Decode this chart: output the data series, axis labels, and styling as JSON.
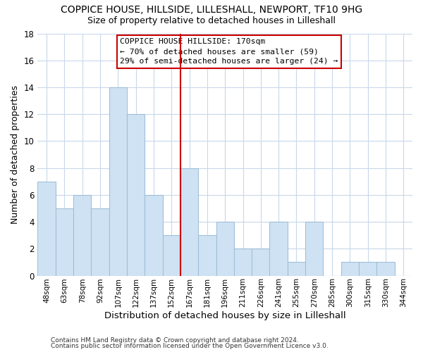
{
  "title": "COPPICE HOUSE, HILLSIDE, LILLESHALL, NEWPORT, TF10 9HG",
  "subtitle": "Size of property relative to detached houses in Lilleshall",
  "xlabel": "Distribution of detached houses by size in Lilleshall",
  "ylabel": "Number of detached properties",
  "bar_labels": [
    "48sqm",
    "63sqm",
    "78sqm",
    "92sqm",
    "107sqm",
    "122sqm",
    "137sqm",
    "152sqm",
    "167sqm",
    "181sqm",
    "196sqm",
    "211sqm",
    "226sqm",
    "241sqm",
    "255sqm",
    "270sqm",
    "285sqm",
    "300sqm",
    "315sqm",
    "330sqm",
    "344sqm"
  ],
  "bar_heights": [
    7,
    5,
    6,
    5,
    14,
    12,
    6,
    3,
    8,
    3,
    4,
    2,
    2,
    4,
    1,
    4,
    0,
    1,
    1,
    1,
    0
  ],
  "bar_color": "#cfe2f3",
  "bar_edgecolor": "#a0bfd8",
  "vline_color": "#cc0000",
  "vline_index": 8,
  "ylim": [
    0,
    18
  ],
  "yticks": [
    0,
    2,
    4,
    6,
    8,
    10,
    12,
    14,
    16,
    18
  ],
  "annotation_title": "COPPICE HOUSE HILLSIDE: 170sqm",
  "annotation_line1": "← 70% of detached houses are smaller (59)",
  "annotation_line2": "29% of semi-detached houses are larger (24) →",
  "annotation_box_facecolor": "#ffffff",
  "annotation_box_edgecolor": "#cc0000",
  "footer_line1": "Contains HM Land Registry data © Crown copyright and database right 2024.",
  "footer_line2": "Contains public sector information licensed under the Open Government Licence v3.0.",
  "background_color": "#ffffff",
  "grid_color": "#c8d8ea"
}
